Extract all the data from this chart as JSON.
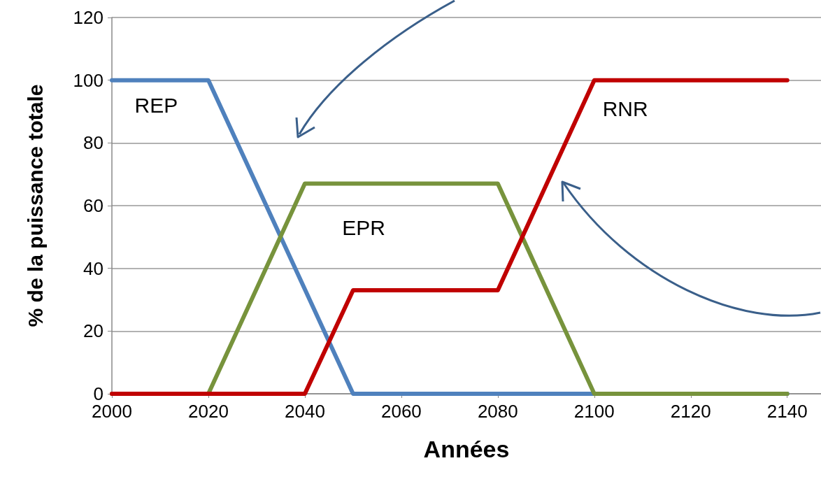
{
  "chart_data": {
    "type": "line",
    "xlabel": "Années",
    "ylabel": "% de la puissance totale",
    "xlim": [
      2000,
      2147
    ],
    "xticks": [
      2000,
      2020,
      2040,
      2060,
      2080,
      2100,
      2120,
      2140
    ],
    "ylim": [
      0,
      120
    ],
    "yticks": [
      0,
      20,
      40,
      60,
      80,
      100,
      120
    ],
    "grid": "y",
    "legend": false,
    "marker": "none",
    "line_style": "solid",
    "series": [
      {
        "name": "REP",
        "color": "#4f81bd",
        "x": [
          2000,
          2020,
          2050,
          2140
        ],
        "values": [
          100,
          100,
          0,
          0
        ]
      },
      {
        "name": "EPR",
        "color": "#77933c",
        "x": [
          2000,
          2020,
          2040,
          2080,
          2100,
          2140
        ],
        "values": [
          0,
          0,
          67,
          67,
          0,
          0
        ]
      },
      {
        "name": "RNR",
        "color": "#c00000",
        "x": [
          2000,
          2040,
          2050,
          2080,
          2100,
          2140
        ],
        "values": [
          0,
          0,
          33,
          33,
          100,
          100
        ]
      }
    ]
  }
}
